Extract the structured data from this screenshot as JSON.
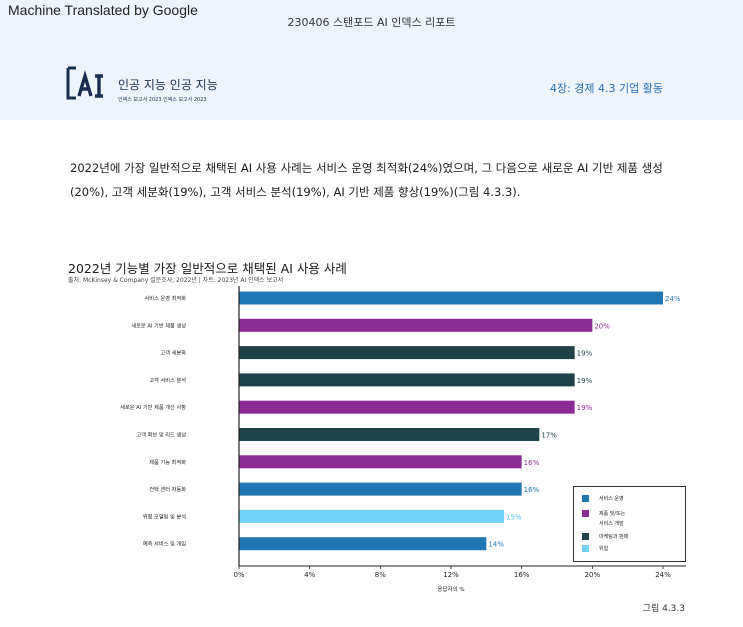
{
  "header": {
    "machine_translated": "Machine Translated by Google",
    "doc_title": "230406 스탠포드 AI 인덱스 리포트",
    "brand_title": "인공 지능 인공 지능",
    "brand_sub": "인덱스 보고서 2023 인덱스 보고서 2023",
    "chapter": "4장: 경제 4.3 기업 활동"
  },
  "intro": "2022년에 가장 일반적으로 채택된 AI 사용 사례는 서비스 운영 최적화(24%)였으며, 그 다음으로 새로운 AI 기반 제품 생성 (20%), 고객 세분화(19%), 고객 서비스 분석(19%), AI 기반 제품 향상(19%)(그림 4.3.3).",
  "figure_label": "그림 4.3.3",
  "colors": {
    "service": "#1f77b4",
    "product": "#8b2c94",
    "marketing": "#1e4247",
    "risk": "#6ed3f7"
  },
  "legend": [
    {
      "label": "서비스 운영",
      "color": "#1f77b4"
    },
    {
      "label": "제품 및/또는",
      "color": "#8b2c94"
    },
    {
      "label": "서비스 개발",
      "color": null
    },
    {
      "label": "마케팅과 판매",
      "color": "#1e4247"
    },
    {
      "label": "위험",
      "color": "#6ed3f7"
    }
  ],
  "chart_data": {
    "type": "bar",
    "orientation": "horizontal",
    "title": "2022년 기능별 가장 일반적으로 채택된 AI 사용 사례",
    "source": "출처: McKinsey & Company 설문조사, 2022년 | 차트: 2023년 AI 인덱스 보고서",
    "xlabel": "응답자의 %",
    "xlim": [
      0,
      24
    ],
    "xticks": [
      "0%",
      "4%",
      "8%",
      "12%",
      "16%",
      "20%",
      "24%"
    ],
    "categories": [
      "서비스 운영 최적화",
      "새로운 AI 기반 제품 생성",
      "고객 세분화",
      "고객 서비스 분석",
      "새로운 AI 기반 제품 개선 사항",
      "고객 확보 및 리드 생성",
      "제품 기능 최적화",
      "컨택 센터 자동화",
      "위험 모델링 및 분석",
      "예측 서비스 및 개입"
    ],
    "values": [
      24,
      20,
      19,
      19,
      19,
      17,
      16,
      16,
      15,
      14
    ],
    "value_labels": [
      "24%",
      "20%",
      "19%",
      "19%",
      "19%",
      "17%",
      "16%",
      "16%",
      "15%",
      "14%"
    ],
    "groups": [
      "service",
      "product",
      "marketing",
      "marketing",
      "product",
      "marketing",
      "product",
      "service",
      "risk",
      "service"
    ],
    "grid": false,
    "legend_position": "bottom-right"
  }
}
